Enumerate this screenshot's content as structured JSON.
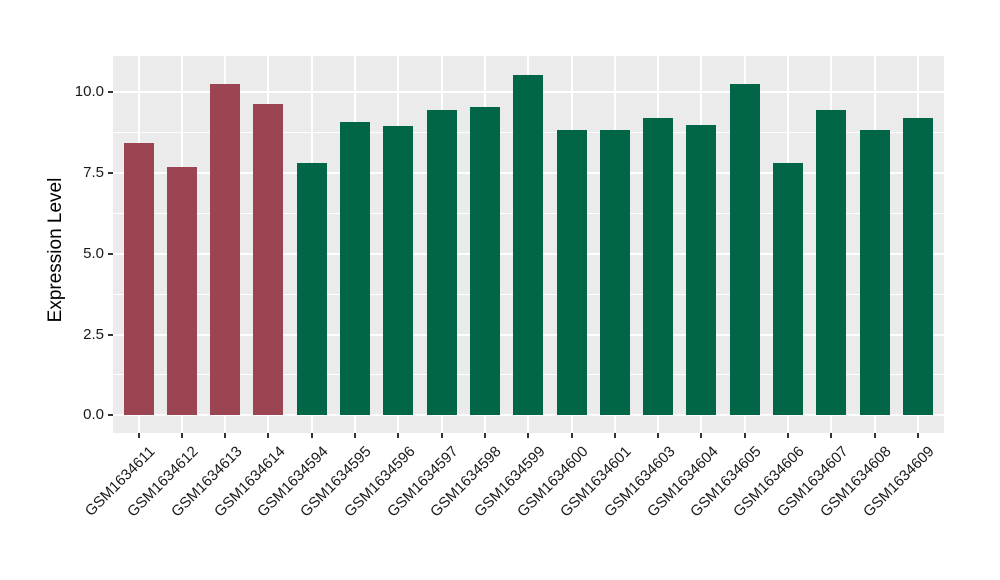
{
  "chart_data": {
    "type": "bar",
    "title": "",
    "xlabel": "",
    "ylabel": "Expression Level",
    "categories": [
      "GSM1634611",
      "GSM1634612",
      "GSM1634613",
      "GSM1634614",
      "GSM1634594",
      "GSM1634595",
      "GSM1634596",
      "GSM1634597",
      "GSM1634598",
      "GSM1634599",
      "GSM1634600",
      "GSM1634601",
      "GSM1634603",
      "GSM1634604",
      "GSM1634605",
      "GSM1634606",
      "GSM1634607",
      "GSM1634608",
      "GSM1634609"
    ],
    "values": [
      8.45,
      7.7,
      10.25,
      9.65,
      7.8,
      9.1,
      8.95,
      9.45,
      9.55,
      10.55,
      8.85,
      8.85,
      9.2,
      9.0,
      10.25,
      7.8,
      9.45,
      8.85,
      9.2
    ],
    "bar_colors": [
      "#9b4452",
      "#9b4452",
      "#9b4452",
      "#9b4452",
      "#006647",
      "#006647",
      "#006647",
      "#006647",
      "#006647",
      "#006647",
      "#006647",
      "#006647",
      "#006647",
      "#006647",
      "#006647",
      "#006647",
      "#006647",
      "#006647",
      "#006647"
    ],
    "group_colors": {
      "maroon": "#9b4452",
      "green": "#006647"
    },
    "y_ticks": [
      0,
      2.5,
      5,
      7.5,
      10
    ],
    "y_tick_labels": [
      "0.0",
      "2.5",
      "5.0",
      "7.5",
      "10.0"
    ],
    "y_minor_ticks": [
      1.25,
      3.75,
      6.25,
      8.75
    ],
    "ylim": [
      -0.55,
      11.13
    ],
    "grid": true,
    "legend": false,
    "panel_background": "#ebebeb",
    "grid_color": "#ffffff"
  }
}
